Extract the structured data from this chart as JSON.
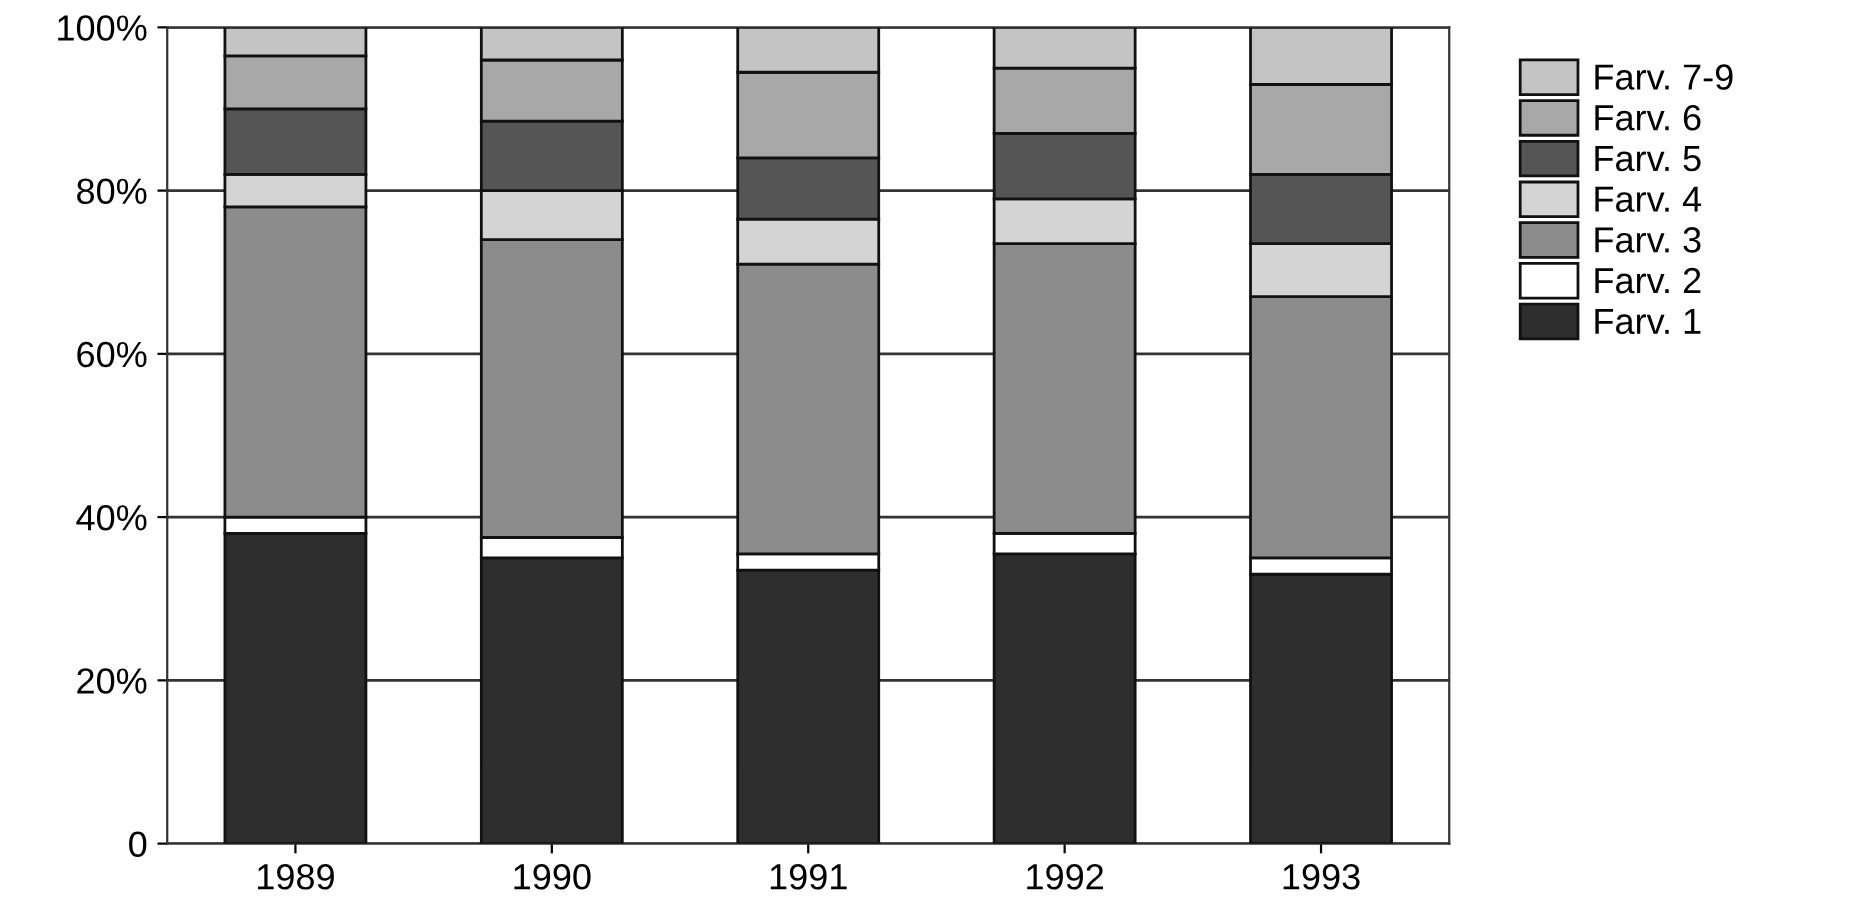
{
  "chart_data": {
    "type": "bar",
    "stacked": true,
    "categories": [
      "1989",
      "1990",
      "1991",
      "1992",
      "1993"
    ],
    "series": [
      {
        "name": "Farv. 1",
        "color": "#2e2e2e",
        "values": [
          38,
          35,
          33.5,
          35.5,
          33
        ]
      },
      {
        "name": "Farv. 2",
        "color": "#ffffff",
        "values": [
          2,
          2.5,
          2,
          2.5,
          2
        ]
      },
      {
        "name": "Farv. 3",
        "color": "#8c8c8c",
        "values": [
          38,
          36.5,
          35.5,
          35.5,
          32
        ]
      },
      {
        "name": "Farv. 4",
        "color": "#d4d4d4",
        "values": [
          4,
          6,
          5.5,
          5.5,
          6.5
        ]
      },
      {
        "name": "Farv. 5",
        "color": "#555555",
        "values": [
          8,
          8.5,
          7.5,
          8,
          8.5
        ]
      },
      {
        "name": "Farv. 6",
        "color": "#a8a8a8",
        "values": [
          6.5,
          7.5,
          10.5,
          8,
          11
        ]
      },
      {
        "name": "Farv. 7-9",
        "color": "#c4c4c4",
        "values": [
          3.5,
          4,
          5.5,
          5,
          7
        ]
      }
    ],
    "ylim": [
      0,
      100
    ],
    "yticks": [
      0,
      {
        "value": 20,
        "label": "20%"
      },
      {
        "value": 40,
        "label": "40%"
      },
      {
        "value": 60,
        "label": "60%"
      },
      {
        "value": 80,
        "label": "80%"
      },
      {
        "value": 100,
        "label": "100%"
      }
    ],
    "grid": "y",
    "legend": "right"
  }
}
